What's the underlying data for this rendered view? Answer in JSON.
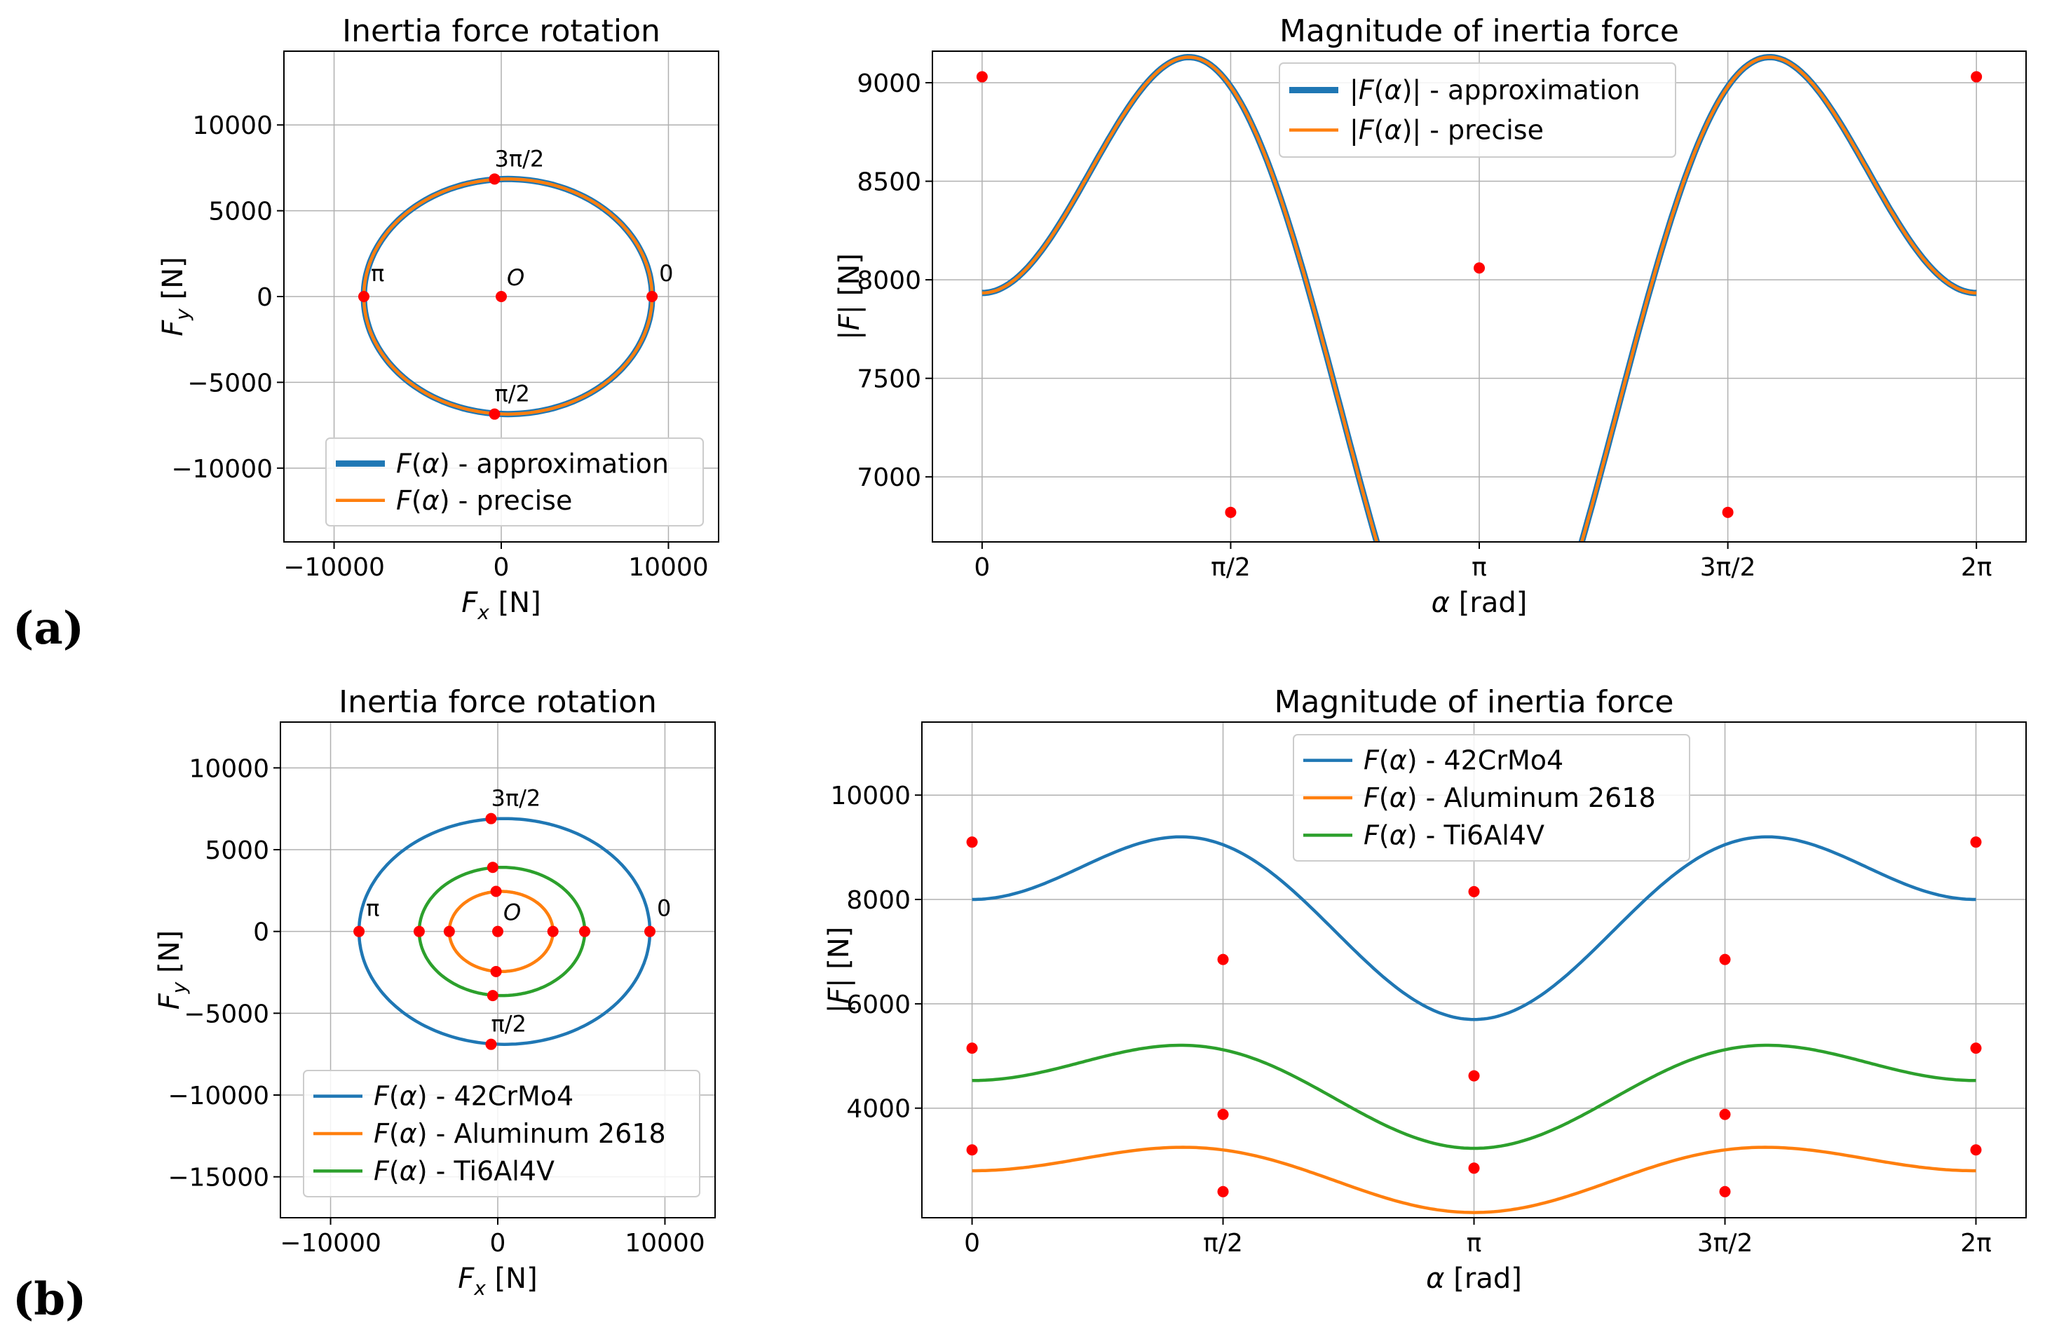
{
  "panel_labels": [
    "(a)",
    "(b)"
  ],
  "chart_data": [
    {
      "id": "a-rotation",
      "type": "line",
      "title": "Inertia force rotation",
      "xlabel": "F_x [N]",
      "ylabel": "F_y [N]",
      "xlim": [
        -13000,
        13000
      ],
      "ylim": [
        -14300,
        14300
      ],
      "xticks": [
        -10000,
        0,
        10000
      ],
      "xtick_labels": [
        "−10000",
        "0",
        "10000"
      ],
      "yticks": [
        -10000,
        -5000,
        0,
        5000,
        10000
      ],
      "ytick_labels": [
        "−10000",
        "−5000",
        "0",
        "5000",
        "10000"
      ],
      "grid": true,
      "legend_position": "lower-center",
      "series": [
        {
          "name": "F(α) - approximation",
          "color": "#1f77b4",
          "style": "thick",
          "shape": "ellipse",
          "cx": 400,
          "cy": 0,
          "rx": 8620,
          "ry": 6850
        },
        {
          "name": "F(α) - precise",
          "color": "#ff7f0e",
          "style": "thin",
          "shape": "ellipse",
          "cx": 400,
          "cy": 0,
          "rx": 8620,
          "ry": 6850
        }
      ],
      "points": [
        {
          "x": 9020,
          "y": 0,
          "label": "0"
        },
        {
          "x": -400,
          "y": -6850,
          "label": "π/2"
        },
        {
          "x": -8220,
          "y": 0,
          "label": "π"
        },
        {
          "x": -400,
          "y": 6850,
          "label": "3π/2"
        },
        {
          "x": 0,
          "y": 0,
          "label": "O"
        }
      ]
    },
    {
      "id": "a-magnitude",
      "type": "line",
      "title": "Magnitude of inertia force",
      "xlabel": "α [rad]",
      "ylabel": "|F| [N]",
      "xlim": [
        -0.314,
        6.597
      ],
      "ylim": [
        6670,
        9160
      ],
      "xticks": [
        0,
        1.5708,
        3.1416,
        4.7124,
        6.2832
      ],
      "xtick_labels": [
        "0",
        "π/2",
        "π",
        "3π/2",
        "2π"
      ],
      "yticks": [
        7000,
        7500,
        8000,
        8500,
        9000
      ],
      "ytick_labels": [
        "7000",
        "7500",
        "8000",
        "8500",
        "9000"
      ],
      "grid": true,
      "legend_position": "top-center",
      "series": [
        {
          "name": "|F(α)| - approximation",
          "color": "#1f77b4",
          "style": "thick",
          "model": {
            "A": 7883,
            "B": 1147,
            "C": -1097
          }
        },
        {
          "name": "|F(α)| - precise",
          "color": "#ff7f0e",
          "style": "thin",
          "model": {
            "A": 7883,
            "B": 1147,
            "C": -1097
          }
        }
      ],
      "points": [
        {
          "x": 0,
          "y": 9030
        },
        {
          "x": 1.5708,
          "y": 6820
        },
        {
          "x": 3.1416,
          "y": 8060
        },
        {
          "x": 4.7124,
          "y": 6820
        },
        {
          "x": 6.2832,
          "y": 9030
        }
      ]
    },
    {
      "id": "b-rotation",
      "type": "line",
      "title": "Inertia force rotation",
      "xlabel": "F_x [N]",
      "ylabel": "F_y [N]",
      "xlim": [
        -13000,
        13000
      ],
      "ylim": [
        -17500,
        12800
      ],
      "xticks": [
        -10000,
        0,
        10000
      ],
      "xtick_labels": [
        "−10000",
        "0",
        "10000"
      ],
      "yticks": [
        -15000,
        -10000,
        -5000,
        0,
        5000,
        10000
      ],
      "ytick_labels": [
        "−15000",
        "−10000",
        "−5000",
        "0",
        "5000",
        "10000"
      ],
      "grid": true,
      "legend_position": "lower-center",
      "series": [
        {
          "name": "F(α) - 42CrMo4",
          "color": "#1f77b4",
          "style": "thin",
          "shape": "ellipse",
          "cx": 400,
          "cy": 0,
          "rx": 8700,
          "ry": 6900
        },
        {
          "name": "F(α) - Aluminum 2618",
          "color": "#ff7f0e",
          "style": "thin",
          "shape": "ellipse",
          "cx": 200,
          "cy": 0,
          "rx": 3100,
          "ry": 2450
        },
        {
          "name": "F(α) - Ti6Al4V",
          "color": "#2ca02c",
          "style": "thin",
          "shape": "ellipse",
          "cx": 250,
          "cy": 0,
          "rx": 4950,
          "ry": 3920
        }
      ],
      "points": [
        {
          "x": 9100,
          "y": 0,
          "label": "0"
        },
        {
          "x": -400,
          "y": -6900,
          "label": "π/2"
        },
        {
          "x": -8300,
          "y": 0,
          "label": "π"
        },
        {
          "x": -400,
          "y": 6900,
          "label": "3π/2"
        },
        {
          "x": 0,
          "y": 0,
          "label": "O"
        },
        {
          "x": 5200,
          "y": 0
        },
        {
          "x": -4700,
          "y": 0
        },
        {
          "x": -300,
          "y": 3920
        },
        {
          "x": -300,
          "y": -3920
        },
        {
          "x": 3300,
          "y": 0
        },
        {
          "x": -2900,
          "y": 0
        },
        {
          "x": -100,
          "y": 2450
        },
        {
          "x": -100,
          "y": -2450
        }
      ]
    },
    {
      "id": "b-magnitude",
      "type": "line",
      "title": "Magnitude of inertia force",
      "xlabel": "α [rad]",
      "ylabel": "|F| [N]",
      "xlim": [
        -0.314,
        6.597
      ],
      "ylim": [
        1900,
        11400
      ],
      "xticks": [
        0,
        1.5708,
        3.1416,
        4.7124,
        6.2832
      ],
      "xtick_labels": [
        "0",
        "π/2",
        "π",
        "3π/2",
        "2π"
      ],
      "yticks": [
        4000,
        6000,
        8000,
        10000
      ],
      "ytick_labels": [
        "4000",
        "6000",
        "8000",
        "10000"
      ],
      "grid": true,
      "legend_position": "top-center",
      "series": [
        {
          "name": "F(α) - 42CrMo4",
          "color": "#1f77b4",
          "style": "thin",
          "model": {
            "A": 7950,
            "B": 1150,
            "C": -1100
          }
        },
        {
          "name": "F(α) - Aluminum 2618",
          "color": "#ff7f0e",
          "style": "thin",
          "model": {
            "A": 2800,
            "B": 400,
            "C": -400
          }
        },
        {
          "name": "F(α) - Ti6Al4V",
          "color": "#2ca02c",
          "style": "thin",
          "model": {
            "A": 4500,
            "B": 650,
            "C": -620
          }
        }
      ],
      "points": [
        {
          "x": 0,
          "y": 9100
        },
        {
          "x": 1.5708,
          "y": 6850
        },
        {
          "x": 3.1416,
          "y": 8150
        },
        {
          "x": 4.7124,
          "y": 6850
        },
        {
          "x": 6.2832,
          "y": 9100
        },
        {
          "x": 0,
          "y": 5150
        },
        {
          "x": 1.5708,
          "y": 3880
        },
        {
          "x": 3.1416,
          "y": 4620
        },
        {
          "x": 4.7124,
          "y": 3880
        },
        {
          "x": 6.2832,
          "y": 5150
        },
        {
          "x": 0,
          "y": 3200
        },
        {
          "x": 1.5708,
          "y": 2400
        },
        {
          "x": 3.1416,
          "y": 2850
        },
        {
          "x": 4.7124,
          "y": 2400
        },
        {
          "x": 6.2832,
          "y": 3200
        }
      ]
    }
  ]
}
